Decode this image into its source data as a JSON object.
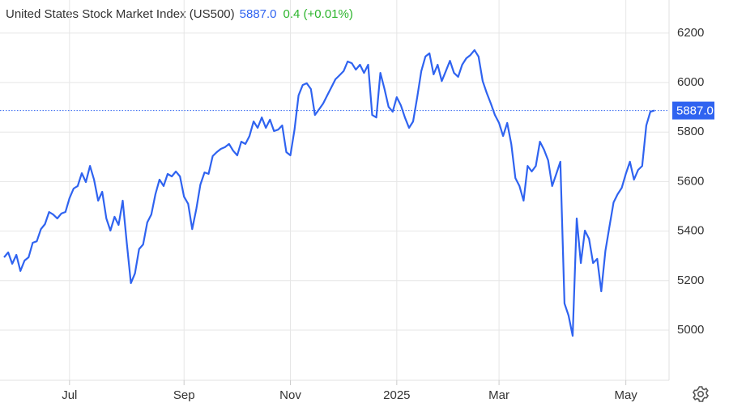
{
  "chart_data": {
    "type": "line",
    "title": "United States Stock Market Index (US500)",
    "last_price": "5887.0",
    "change": "0.4 (+0.01%)",
    "color": "#2f63f0",
    "change_color": "#2db52d",
    "grid": true,
    "values": [
      5294,
      5314,
      5268,
      5304,
      5239,
      5281,
      5294,
      5353,
      5359,
      5408,
      5428,
      5477,
      5467,
      5451,
      5471,
      5477,
      5533,
      5572,
      5582,
      5634,
      5598,
      5663,
      5608,
      5523,
      5559,
      5451,
      5402,
      5458,
      5425,
      5523,
      5353,
      5190,
      5229,
      5327,
      5346,
      5435,
      5467,
      5549,
      5608,
      5582,
      5631,
      5621,
      5641,
      5621,
      5539,
      5510,
      5408,
      5490,
      5588,
      5637,
      5631,
      5703,
      5719,
      5732,
      5739,
      5752,
      5725,
      5706,
      5761,
      5752,
      5784,
      5843,
      5817,
      5859,
      5817,
      5850,
      5804,
      5810,
      5827,
      5719,
      5706,
      5810,
      5948,
      5990,
      5997,
      5974,
      5869,
      5892,
      5915,
      5948,
      5980,
      6013,
      6029,
      6046,
      6085,
      6078,
      6052,
      6072,
      6039,
      6072,
      5869,
      5859,
      6039,
      5974,
      5902,
      5882,
      5941,
      5908,
      5859,
      5817,
      5843,
      5941,
      6046,
      6105,
      6118,
      6033,
      6072,
      6006,
      6046,
      6088,
      6039,
      6023,
      6072,
      6098,
      6111,
      6131,
      6105,
      6006,
      5958,
      5915,
      5869,
      5837,
      5784,
      5837,
      5752,
      5614,
      5582,
      5523,
      5663,
      5641,
      5663,
      5761,
      5729,
      5686,
      5582,
      5631,
      5680,
      5108,
      5059,
      4977,
      5451,
      5271,
      5402,
      5369,
      5271,
      5288,
      5157,
      5320,
      5418,
      5516,
      5549,
      5575,
      5631,
      5680,
      5608,
      5647,
      5663,
      5827,
      5882,
      5887
    ],
    "xlim": [
      0,
      159
    ],
    "xticks": [
      {
        "value": 16,
        "label": "Jul"
      },
      {
        "value": 44,
        "label": "Sep"
      },
      {
        "value": 70,
        "label": "Nov"
      },
      {
        "value": 96,
        "label": "2025"
      },
      {
        "value": 121,
        "label": "Mar"
      },
      {
        "value": 152,
        "label": "May"
      }
    ],
    "ylim": [
      4800,
      6270
    ],
    "yticks": [
      5000,
      5200,
      5400,
      5600,
      5800,
      6000,
      6200
    ]
  }
}
